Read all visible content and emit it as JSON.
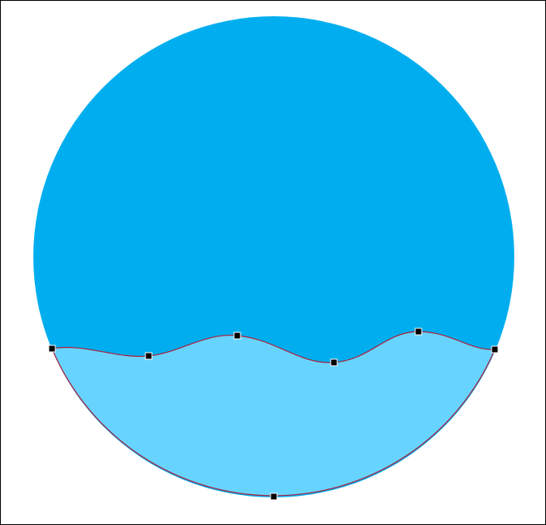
{
  "artboard": {
    "background_color": "#ffffff",
    "border_color": "#000000"
  },
  "shapes": {
    "circle": {
      "name": "circle-shape",
      "fill": "#00aeef"
    },
    "wave": {
      "name": "wave-shape",
      "fill": "#66d4ff",
      "stroke": "#b01e3a",
      "selected": true
    }
  },
  "anchor_points": {
    "count": 7,
    "fill": "#000000",
    "outline": "#ffffff"
  }
}
